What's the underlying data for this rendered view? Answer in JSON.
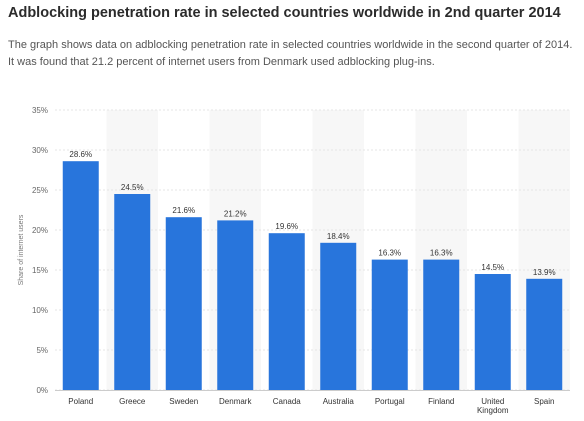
{
  "header": {
    "title": "Adblocking penetration rate in selected countries worldwide in 2nd quarter 2014",
    "description": "The graph shows data on adblocking penetration rate in selected countries worldwide in the second quarter of 2014. It was found that 21.2 percent of internet users from Denmark used adblocking plug-ins."
  },
  "chart_data": {
    "type": "bar",
    "categories": [
      "Poland",
      "Greece",
      "Sweden",
      "Denmark",
      "Canada",
      "Australia",
      "Portugal",
      "Finland",
      "United Kingdom",
      "Spain"
    ],
    "category_lines": [
      [
        "Poland"
      ],
      [
        "Greece"
      ],
      [
        "Sweden"
      ],
      [
        "Denmark"
      ],
      [
        "Canada"
      ],
      [
        "Australia"
      ],
      [
        "Portugal"
      ],
      [
        "Finland"
      ],
      [
        "United",
        "Kingdom"
      ],
      [
        "Spain"
      ]
    ],
    "values": [
      28.6,
      24.5,
      21.6,
      21.2,
      19.6,
      18.4,
      16.3,
      16.3,
      14.5,
      13.9
    ],
    "data_labels": [
      "28.6%",
      "24.5%",
      "21.6%",
      "21.2%",
      "19.6%",
      "18.4%",
      "16.3%",
      "16.3%",
      "14.5%",
      "13.9%"
    ],
    "ylabel": "Share of internet users",
    "ylim": [
      0,
      35
    ],
    "yticks": [
      0,
      5,
      10,
      15,
      20,
      25,
      30,
      35
    ],
    "ytick_labels": [
      "0%",
      "5%",
      "10%",
      "15%",
      "20%",
      "25%",
      "30%",
      "35%"
    ],
    "grid": true,
    "colors": {
      "bar": "#2875dc",
      "band": "#f7f7f7",
      "grid": "#e6e6e6",
      "axis": "#cccccc"
    }
  }
}
